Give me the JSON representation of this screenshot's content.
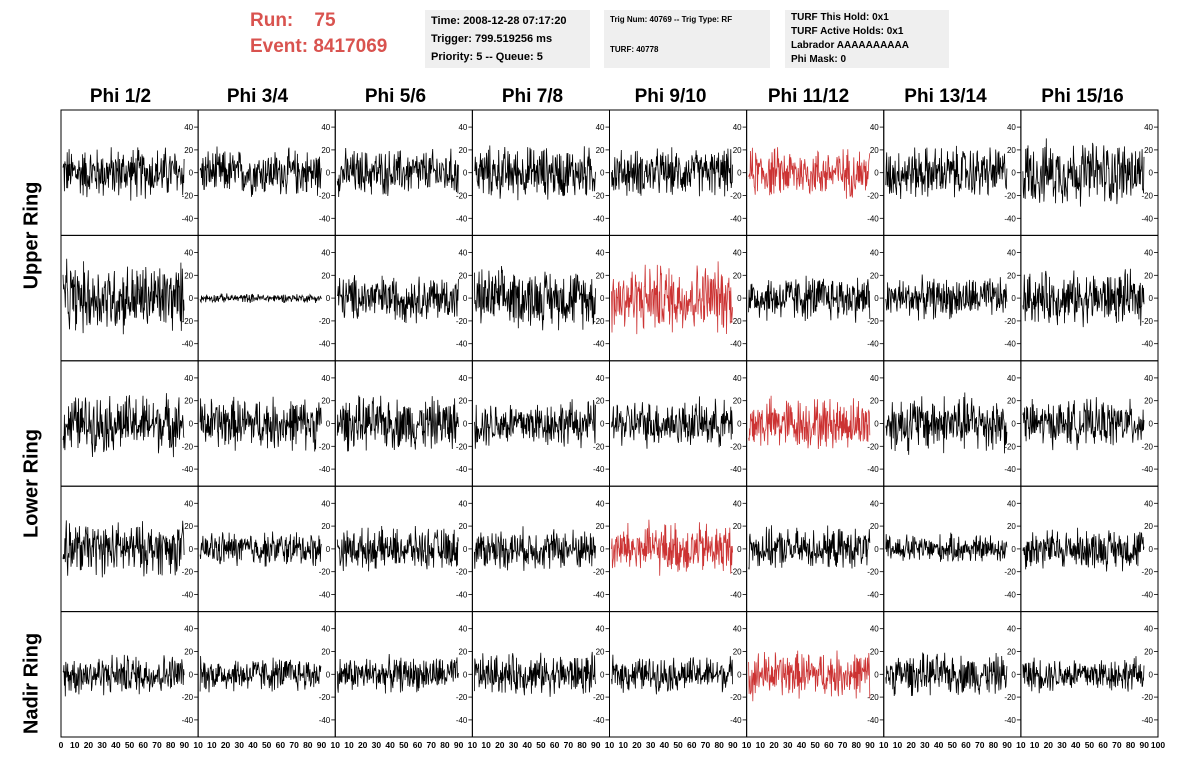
{
  "header": {
    "run_label": "Run:",
    "run_value": "75",
    "event_label": "Event:",
    "event_value": "8417069"
  },
  "info_time": {
    "line1": "Time: 2008-12-28 07:17:20",
    "line2": "Trigger: 799.519256 ms",
    "line3": "Priority: 5 -- Queue: 5"
  },
  "info_trig": {
    "line1": "Trig Num: 40769 -- Trig Type: RF",
    "line2": "TURF: 40778"
  },
  "info_turf": {
    "line1": "TURF This Hold: 0x1",
    "line2": "TURF Active Holds: 0x1",
    "line3": "Labrador AAAAAAAAAA",
    "line4": "Phi Mask: 0"
  },
  "phi_labels": [
    "Phi 1/2",
    "Phi 3/4",
    "Phi 5/6",
    "Phi 7/8",
    "Phi 9/10",
    "Phi 11/12",
    "Phi 13/14",
    "Phi 15/16"
  ],
  "ring_labels": [
    "Upper Ring",
    "Lower Ring",
    "Nadir Ring"
  ],
  "colors": {
    "normal": "#000000",
    "highlight": "#cc3333",
    "header_red": "#d9534f"
  },
  "chart_data": {
    "type": "line",
    "rows": 5,
    "cols": 8,
    "xlim": [
      0,
      100
    ],
    "ylim": [
      -55,
      55
    ],
    "x_ticks": [
      "0",
      "10",
      "20",
      "30",
      "40",
      "50",
      "60",
      "70",
      "80",
      "90",
      "100"
    ],
    "x_tick_labels": [
      "0",
      "10",
      "20",
      "30",
      "40",
      "50",
      "60",
      "70",
      "80",
      "90",
      "10",
      "10",
      "20",
      "30",
      "40",
      "50",
      "60",
      "70",
      "80",
      "90",
      "10",
      "10",
      "20",
      "30",
      "40",
      "50",
      "60",
      "70",
      "80",
      "90",
      "10",
      "10",
      "20",
      "30",
      "40",
      "50",
      "60",
      "70",
      "80",
      "90",
      "10",
      "10",
      "20",
      "30",
      "40",
      "50",
      "60",
      "70",
      "80",
      "90",
      "10",
      "10",
      "20",
      "30",
      "40",
      "50",
      "60",
      "70",
      "80",
      "90",
      "10",
      "10",
      "20",
      "30",
      "40",
      "50",
      "60",
      "70",
      "80",
      "90",
      "10",
      "10",
      "20",
      "30",
      "40",
      "50",
      "60",
      "70",
      "80",
      "90",
      "100"
    ],
    "y_ticks": [
      "40",
      "20",
      "0",
      "-20",
      "-40"
    ],
    "highlighted_panels": [
      [
        0,
        5
      ],
      [
        1,
        4
      ],
      [
        2,
        5
      ],
      [
        3,
        4
      ],
      [
        4,
        5
      ]
    ],
    "amplitudes": [
      [
        18,
        16,
        16,
        18,
        16,
        17,
        18,
        22
      ],
      [
        24,
        3,
        16,
        20,
        24,
        16,
        14,
        18
      ],
      [
        20,
        18,
        18,
        16,
        16,
        18,
        20,
        16
      ],
      [
        18,
        12,
        14,
        14,
        18,
        14,
        10,
        14
      ],
      [
        14,
        12,
        12,
        14,
        12,
        16,
        14,
        12
      ]
    ],
    "samples_per_panel": 260
  }
}
